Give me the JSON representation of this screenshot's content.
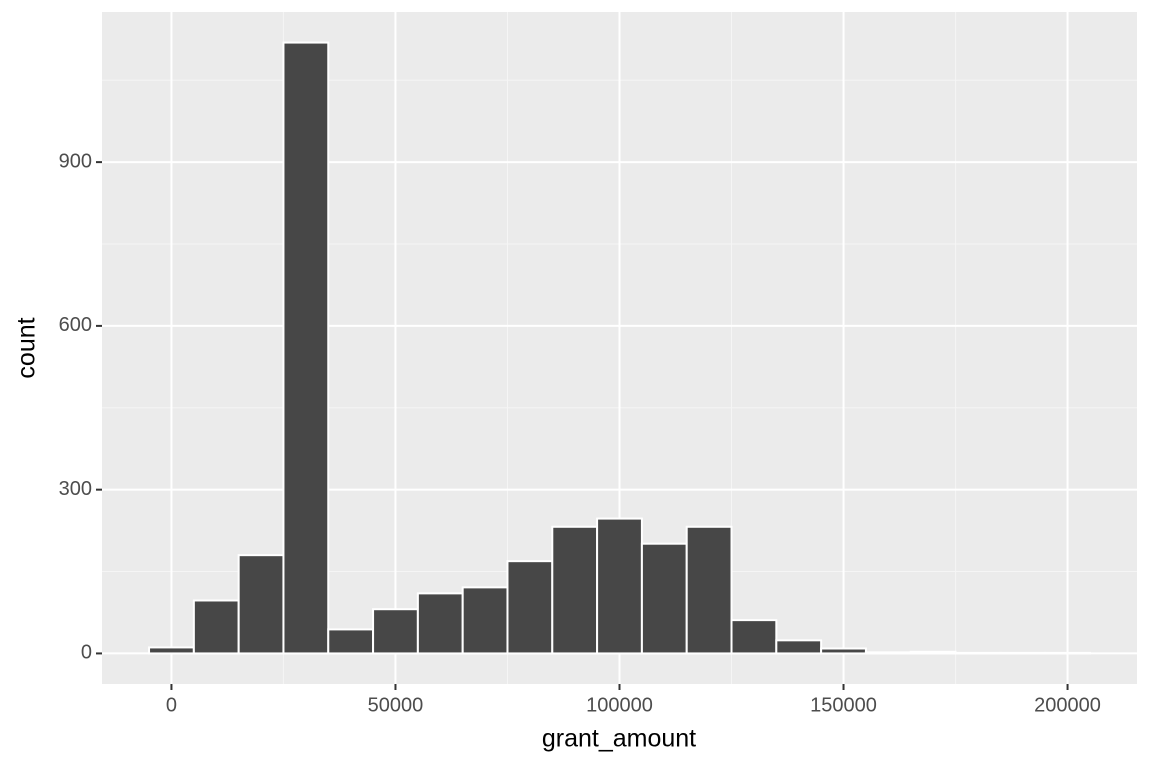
{
  "chart_data": {
    "type": "histogram",
    "x_label": "grant_amount",
    "y_label": "count",
    "bins": [
      -5000,
      5000,
      15000,
      25000,
      35000,
      45000,
      55000,
      65000,
      75000,
      85000,
      95000,
      105000,
      115000,
      125000,
      135000,
      145000,
      155000,
      165000,
      175000,
      185000,
      195000,
      205000
    ],
    "values": [
      11,
      97,
      180,
      1119,
      44,
      81,
      110,
      121,
      169,
      232,
      247,
      201,
      232,
      61,
      24,
      9,
      2,
      3,
      1,
      1,
      1
    ],
    "color": "#474747",
    "xlim": [
      -15500,
      215500
    ],
    "xticks": [
      0,
      50000,
      100000,
      150000,
      200000
    ],
    "ylim": [
      -56,
      1175
    ],
    "yticks": [
      0,
      300,
      600,
      900
    ],
    "grid": true
  }
}
